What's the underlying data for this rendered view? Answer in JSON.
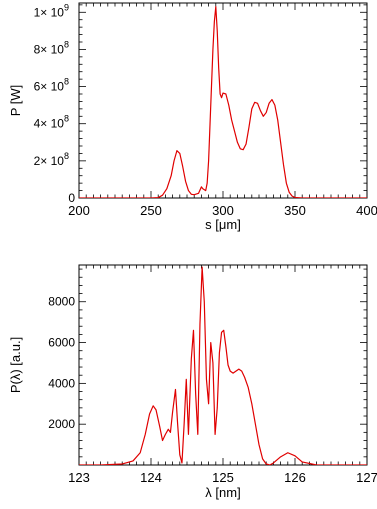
{
  "chart_data": [
    {
      "type": "line",
      "xlabel": "s [μm]",
      "ylabel": "P [W]",
      "xlim": [
        200,
        400
      ],
      "ylim": [
        0,
        1050000000
      ],
      "xticks": [
        200,
        250,
        300,
        350,
        400
      ],
      "yticks": [
        {
          "v": 0,
          "label": "0",
          "exp": ""
        },
        {
          "v": 200000000,
          "label": "2× 10",
          "exp": "8"
        },
        {
          "v": 400000000,
          "label": "4× 10",
          "exp": "8"
        },
        {
          "v": 600000000,
          "label": "6× 10",
          "exp": "8"
        },
        {
          "v": 800000000,
          "label": "8× 10",
          "exp": "8"
        },
        {
          "v": 1000000000,
          "label": "1× 10",
          "exp": "9"
        }
      ],
      "grid": false,
      "line_color": "#e00000",
      "series": [
        {
          "x": [
            200,
            240,
            250,
            255,
            258,
            261,
            264,
            266,
            268,
            270,
            272,
            274,
            276,
            278,
            280,
            283,
            285,
            286,
            288,
            289,
            290,
            291,
            292,
            293,
            294,
            295,
            296,
            297,
            298,
            299,
            300,
            302,
            304,
            306,
            308,
            310,
            312,
            314,
            316,
            318,
            320,
            322,
            324,
            326,
            328,
            330,
            332,
            334,
            336,
            338,
            340,
            342,
            344,
            346,
            348,
            350,
            355,
            360,
            400
          ],
          "y": [
            0,
            0,
            0,
            2000000,
            15000000,
            50000000,
            120000000,
            200000000,
            255000000,
            240000000,
            170000000,
            90000000,
            40000000,
            20000000,
            18000000,
            25000000,
            60000000,
            50000000,
            40000000,
            80000000,
            200000000,
            400000000,
            600000000,
            800000000,
            950000000,
            1030000000,
            900000000,
            700000000,
            560000000,
            540000000,
            565000000,
            560000000,
            500000000,
            420000000,
            360000000,
            300000000,
            265000000,
            260000000,
            290000000,
            380000000,
            480000000,
            515000000,
            510000000,
            470000000,
            440000000,
            460000000,
            510000000,
            530000000,
            500000000,
            420000000,
            300000000,
            180000000,
            80000000,
            30000000,
            10000000,
            3000000,
            0,
            0,
            0
          ]
        }
      ]
    },
    {
      "type": "line",
      "xlabel": "λ [nm]",
      "ylabel": "P(λ) [a.u.]",
      "xlim": [
        123,
        127
      ],
      "ylim": [
        0,
        9800
      ],
      "xticks": [
        123,
        124,
        125,
        126,
        127
      ],
      "yticks": [
        {
          "v": 2000,
          "label": "2000",
          "exp": ""
        },
        {
          "v": 4000,
          "label": "4000",
          "exp": ""
        },
        {
          "v": 6000,
          "label": "6000",
          "exp": ""
        },
        {
          "v": 8000,
          "label": "8000",
          "exp": ""
        }
      ],
      "grid": false,
      "line_color": "#e00000",
      "series": [
        {
          "x": [
            123.0,
            123.3,
            123.6,
            123.75,
            123.85,
            123.92,
            123.98,
            124.03,
            124.07,
            124.12,
            124.16,
            124.2,
            124.24,
            124.27,
            124.3,
            124.34,
            124.37,
            124.4,
            124.43,
            124.46,
            124.49,
            124.52,
            124.56,
            124.59,
            124.62,
            124.65,
            124.68,
            124.71,
            124.74,
            124.77,
            124.8,
            124.83,
            124.86,
            124.89,
            124.92,
            124.95,
            124.98,
            125.01,
            125.04,
            125.07,
            125.1,
            125.14,
            125.18,
            125.22,
            125.26,
            125.3,
            125.35,
            125.4,
            125.45,
            125.5,
            125.55,
            125.6,
            125.65,
            125.7,
            125.8,
            125.9,
            126.0,
            126.1,
            126.3,
            127.0
          ],
          "y": [
            0,
            0,
            50,
            200,
            600,
            1500,
            2500,
            2900,
            2700,
            1900,
            1200,
            1500,
            1750,
            1600,
            2600,
            3700,
            2000,
            500,
            100,
            2000,
            4200,
            1500,
            5200,
            6600,
            3500,
            1500,
            6900,
            9700,
            8000,
            4200,
            3000,
            6000,
            5000,
            1500,
            2800,
            5500,
            6500,
            6600,
            5800,
            4900,
            4600,
            4500,
            4600,
            4700,
            4600,
            4300,
            3800,
            3000,
            2000,
            1000,
            300,
            50,
            0,
            100,
            400,
            600,
            450,
            150,
            0,
            0
          ]
        }
      ]
    }
  ]
}
